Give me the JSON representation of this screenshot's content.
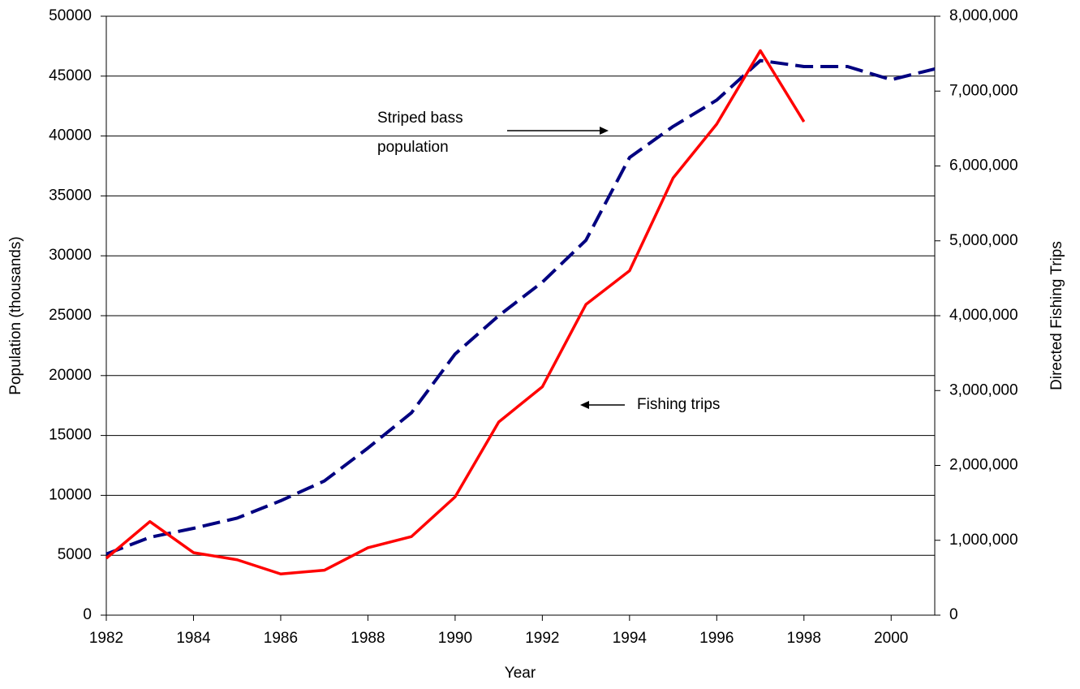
{
  "chart_data": {
    "type": "line",
    "x_label": "Year",
    "y_label": "Population (thousands)",
    "y2_label": "Directed Fishing Trips",
    "x": [
      1982,
      1983,
      1984,
      1985,
      1986,
      1987,
      1988,
      1989,
      1990,
      1991,
      1992,
      1993,
      1994,
      1995,
      1996,
      1997,
      1998,
      1999,
      2000,
      2001
    ],
    "xlim": [
      1982,
      2001
    ],
    "xticks": [
      1982,
      1984,
      1986,
      1988,
      1990,
      1992,
      1994,
      1996,
      1998,
      2000
    ],
    "ylim": [
      0,
      50000
    ],
    "yticks": [
      0,
      5000,
      10000,
      15000,
      20000,
      25000,
      30000,
      35000,
      40000,
      45000,
      50000
    ],
    "y2lim": [
      0,
      8000000
    ],
    "y2ticks": [
      0,
      {
        "value": 1000000,
        "label": "1,000,000"
      },
      {
        "value": 2000000,
        "label": "2,000,000"
      },
      {
        "value": 3000000,
        "label": "3,000,000"
      },
      {
        "value": 4000000,
        "label": "4,000,000"
      },
      {
        "value": 5000000,
        "label": "5,000,000"
      },
      {
        "value": 6000000,
        "label": "6,000,000"
      },
      {
        "value": 7000000,
        "label": "7,000,000"
      },
      {
        "value": 8000000,
        "label": "8,000,000"
      }
    ],
    "grid": true,
    "series": [
      {
        "name": "Striped bass population",
        "color": "#000080",
        "dashed": true,
        "values": [
          5100,
          6500,
          7250,
          8100,
          9550,
          11200,
          13950,
          16900,
          21800,
          25000,
          27800,
          31300,
          38200,
          40800,
          43000,
          46300,
          45800,
          45800,
          44700,
          45600
        ]
      },
      {
        "name": "Fishing trips",
        "color": "#ff0000",
        "axis": "y2",
        "values": [
          760000,
          1250000,
          835000,
          740000,
          550000,
          600000,
          900000,
          1050000,
          1580000,
          2580000,
          3050000,
          4150000,
          4600000,
          5840000,
          6560000,
          7540000,
          6590000,
          null,
          null,
          null
        ]
      }
    ],
    "annotations": [
      {
        "lines": [
          "Striped bass",
          "population"
        ]
      },
      {
        "lines": [
          "Fishing trips"
        ]
      }
    ]
  }
}
